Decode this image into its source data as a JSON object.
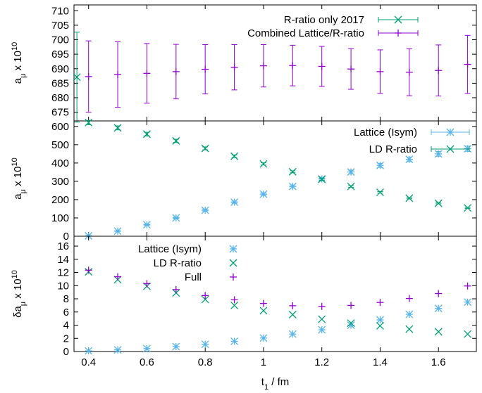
{
  "chart_data": [
    {
      "type": "scatter",
      "panel": "top",
      "ylabel": "a_μ x 10^10",
      "ylabel_parts": {
        "base": "a",
        "sub": "μ",
        "mid": " x 10",
        "sup": "10"
      },
      "ylim": [
        672,
        712
      ],
      "yticks": [
        675,
        680,
        685,
        690,
        695,
        700,
        705,
        710
      ],
      "legend_position": "top-right",
      "series": [
        {
          "name": "R-ratio only 2017",
          "color": "#009e73",
          "marker": "x",
          "points": [
            {
              "x": 0.36,
              "y": 687.1,
              "err": 15.5
            }
          ]
        },
        {
          "name": "Combined Lattice/R-ratio",
          "color": "#9400d3",
          "marker": "plus",
          "points": [
            {
              "x": 0.4,
              "y": 687.3,
              "err": 12.3
            },
            {
              "x": 0.5,
              "y": 688.0,
              "err": 11.3
            },
            {
              "x": 0.6,
              "y": 688.4,
              "err": 10.3
            },
            {
              "x": 0.7,
              "y": 689.0,
              "err": 9.4
            },
            {
              "x": 0.8,
              "y": 689.8,
              "err": 8.5
            },
            {
              "x": 0.9,
              "y": 690.5,
              "err": 7.8
            },
            {
              "x": 1.0,
              "y": 691.0,
              "err": 7.3
            },
            {
              "x": 1.1,
              "y": 691.1,
              "err": 7.0
            },
            {
              "x": 1.2,
              "y": 690.8,
              "err": 6.9
            },
            {
              "x": 1.3,
              "y": 689.9,
              "err": 7.0
            },
            {
              "x": 1.4,
              "y": 689.0,
              "err": 7.5
            },
            {
              "x": 1.5,
              "y": 688.8,
              "err": 8.1
            },
            {
              "x": 1.6,
              "y": 689.4,
              "err": 8.8
            },
            {
              "x": 1.7,
              "y": 691.5,
              "err": 10.0
            }
          ]
        }
      ]
    },
    {
      "type": "scatter",
      "panel": "middle",
      "ylabel": "a_μ x 10^10",
      "ylabel_parts": {
        "base": "a",
        "sub": "μ",
        "mid": " x 10",
        "sup": "10"
      },
      "ylim": [
        0,
        630
      ],
      "yticks": [
        0,
        100,
        200,
        300,
        400,
        500,
        600
      ],
      "legend_position": "top-right",
      "series": [
        {
          "name": "Lattice (Isym)",
          "color": "#56b4e9",
          "marker": "star",
          "points": [
            {
              "x": 0.4,
              "y": 2,
              "err": 1
            },
            {
              "x": 0.5,
              "y": 28,
              "err": 2
            },
            {
              "x": 0.6,
              "y": 63,
              "err": 3
            },
            {
              "x": 0.7,
              "y": 100,
              "err": 4
            },
            {
              "x": 0.8,
              "y": 142,
              "err": 5
            },
            {
              "x": 0.9,
              "y": 186,
              "err": 6
            },
            {
              "x": 1.0,
              "y": 230,
              "err": 7
            },
            {
              "x": 1.1,
              "y": 272,
              "err": 8
            },
            {
              "x": 1.2,
              "y": 313,
              "err": 9
            },
            {
              "x": 1.3,
              "y": 351,
              "err": 10
            },
            {
              "x": 1.4,
              "y": 387,
              "err": 11
            },
            {
              "x": 1.5,
              "y": 420,
              "err": 12
            },
            {
              "x": 1.6,
              "y": 450,
              "err": 13
            },
            {
              "x": 1.7,
              "y": 478,
              "err": 14
            }
          ]
        },
        {
          "name": "LD R-ratio",
          "color": "#009e73",
          "marker": "x",
          "points": [
            {
              "x": 0.4,
              "y": 621,
              "err": 12
            },
            {
              "x": 0.5,
              "y": 592,
              "err": 11
            },
            {
              "x": 0.6,
              "y": 558,
              "err": 10
            },
            {
              "x": 0.7,
              "y": 521,
              "err": 9
            },
            {
              "x": 0.8,
              "y": 480,
              "err": 8
            },
            {
              "x": 0.9,
              "y": 437,
              "err": 7
            },
            {
              "x": 1.0,
              "y": 395,
              "err": 6
            },
            {
              "x": 1.1,
              "y": 352,
              "err": 5.5
            },
            {
              "x": 1.2,
              "y": 311,
              "err": 5
            },
            {
              "x": 1.3,
              "y": 272,
              "err": 4.5
            },
            {
              "x": 1.4,
              "y": 240,
              "err": 4
            },
            {
              "x": 1.5,
              "y": 208,
              "err": 3.5
            },
            {
              "x": 1.6,
              "y": 180,
              "err": 3
            },
            {
              "x": 1.7,
              "y": 155,
              "err": 2.7
            }
          ]
        }
      ]
    },
    {
      "type": "scatter",
      "panel": "bottom",
      "ylabel": "δa_μ x 10^10",
      "ylabel_parts": {
        "base": "δa",
        "sub": "μ",
        "mid": " x 10",
        "sup": "10"
      },
      "xlabel": "t_1 / fm",
      "xlabel_parts": {
        "base": "t",
        "sub": "1",
        "rest": " / fm"
      },
      "xlim": [
        0.35,
        1.73
      ],
      "xticks": [
        "0.4",
        "0.6",
        "0.8",
        "1",
        "1.2",
        "1.4",
        "1.6"
      ],
      "ylim": [
        0,
        17.5
      ],
      "yticks": [
        0,
        2,
        4,
        6,
        8,
        10,
        12,
        14,
        16
      ],
      "legend_position": "top-left",
      "series": [
        {
          "name": "Lattice (Isym)",
          "color": "#56b4e9",
          "marker": "star",
          "points": [
            {
              "x": 0.4,
              "y": 0.1
            },
            {
              "x": 0.5,
              "y": 0.25
            },
            {
              "x": 0.6,
              "y": 0.45
            },
            {
              "x": 0.7,
              "y": 0.75
            },
            {
              "x": 0.8,
              "y": 1.1
            },
            {
              "x": 0.9,
              "y": 1.55
            },
            {
              "x": 1.0,
              "y": 2.05
            },
            {
              "x": 1.1,
              "y": 2.65
            },
            {
              "x": 1.2,
              "y": 3.3
            },
            {
              "x": 1.3,
              "y": 4.0
            },
            {
              "x": 1.4,
              "y": 4.8
            },
            {
              "x": 1.5,
              "y": 5.65
            },
            {
              "x": 1.6,
              "y": 6.55
            },
            {
              "x": 1.7,
              "y": 7.5
            }
          ]
        },
        {
          "name": "LD R-ratio",
          "color": "#009e73",
          "marker": "x",
          "points": [
            {
              "x": 0.4,
              "y": 12.1
            },
            {
              "x": 0.5,
              "y": 10.9
            },
            {
              "x": 0.6,
              "y": 9.9
            },
            {
              "x": 0.7,
              "y": 8.9
            },
            {
              "x": 0.8,
              "y": 7.9
            },
            {
              "x": 0.9,
              "y": 7.0
            },
            {
              "x": 1.0,
              "y": 6.2
            },
            {
              "x": 1.1,
              "y": 5.6
            },
            {
              "x": 1.2,
              "y": 4.9
            },
            {
              "x": 1.3,
              "y": 4.3
            },
            {
              "x": 1.4,
              "y": 3.9
            },
            {
              "x": 1.5,
              "y": 3.4
            },
            {
              "x": 1.6,
              "y": 3.0
            },
            {
              "x": 1.7,
              "y": 2.65
            }
          ]
        },
        {
          "name": "Full",
          "color": "#9400d3",
          "marker": "plus",
          "points": [
            {
              "x": 0.4,
              "y": 12.35
            },
            {
              "x": 0.5,
              "y": 11.35
            },
            {
              "x": 0.6,
              "y": 10.3
            },
            {
              "x": 0.7,
              "y": 9.4
            },
            {
              "x": 0.8,
              "y": 8.5
            },
            {
              "x": 0.9,
              "y": 7.85
            },
            {
              "x": 1.0,
              "y": 7.3
            },
            {
              "x": 1.1,
              "y": 6.95
            },
            {
              "x": 1.2,
              "y": 6.85
            },
            {
              "x": 1.3,
              "y": 7.0
            },
            {
              "x": 1.4,
              "y": 7.45
            },
            {
              "x": 1.5,
              "y": 8.05
            },
            {
              "x": 1.6,
              "y": 8.8
            },
            {
              "x": 1.7,
              "y": 9.95
            }
          ]
        }
      ]
    }
  ]
}
